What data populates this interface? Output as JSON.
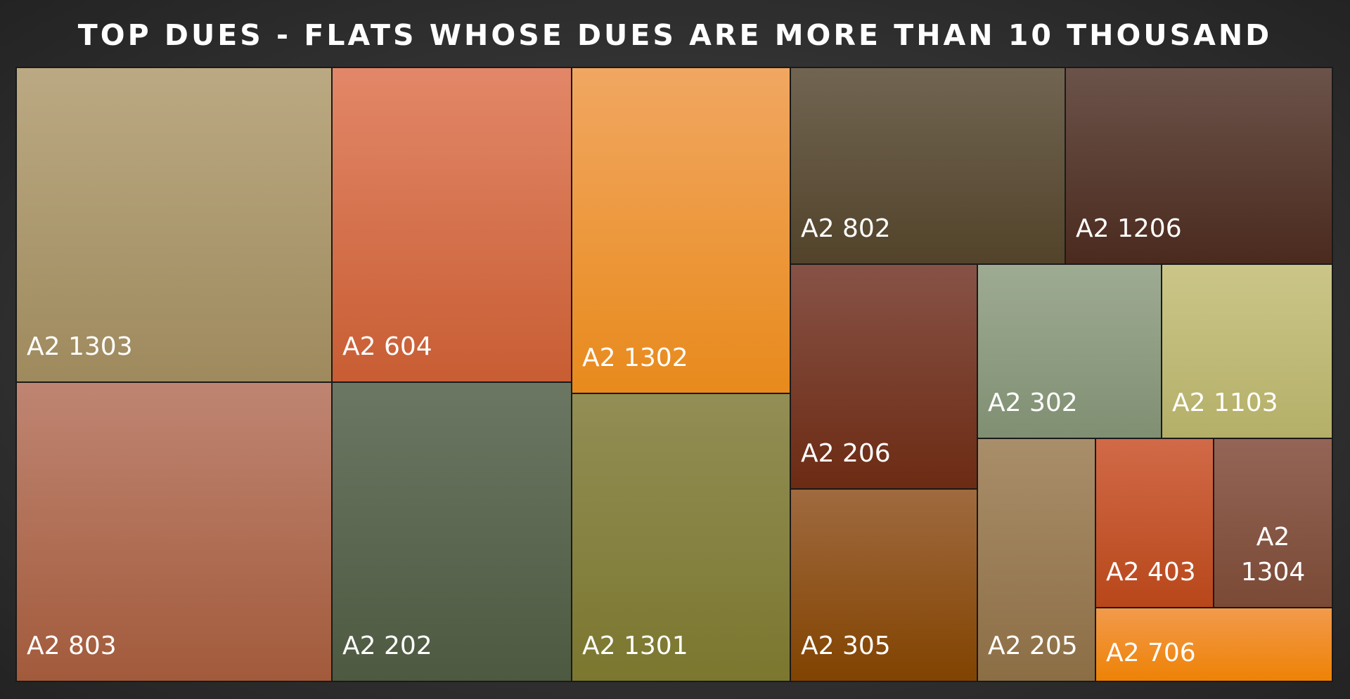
{
  "title": "TOP DUES - FLATS WHOSE DUES ARE MORE THAN 10 THOUSAND",
  "chart_data": {
    "type": "treemap",
    "title": "TOP DUES - FLATS WHOSE DUES ARE MORE THAN 10 THOUSAND",
    "items": [
      {
        "label": "A2 1303",
        "value": 20.2,
        "colors": [
          "#bba983",
          "#9e8a5d"
        ]
      },
      {
        "label": "A2 803",
        "value": 19.2,
        "colors": [
          "#bf8572",
          "#a25a3b"
        ]
      },
      {
        "label": "A2 604",
        "value": 15.3,
        "colors": [
          "#e28768",
          "#c85d33"
        ]
      },
      {
        "label": "A2 202",
        "value": 14.6,
        "colors": [
          "#6b7763",
          "#4d5940"
        ]
      },
      {
        "label": "A2 1302",
        "value": 14.7,
        "colors": [
          "#f1a761",
          "#e88a1c"
        ]
      },
      {
        "label": "A2 1301",
        "value": 12.8,
        "colors": [
          "#928e55",
          "#7b772f"
        ]
      },
      {
        "label": "A2 802",
        "value": 10.7,
        "colors": [
          "#716552",
          "#52432a"
        ]
      },
      {
        "label": "A2 1206",
        "value": 10.7,
        "colors": [
          "#6b534a",
          "#4b2a1e"
        ]
      },
      {
        "label": "A2 206",
        "value": 8.3,
        "colors": [
          "#875246",
          "#6c2b13"
        ]
      },
      {
        "label": "A2 305",
        "value": 6.0,
        "colors": [
          "#a06a3f",
          "#814300"
        ]
      },
      {
        "label": "A2 302",
        "value": 6.4,
        "colors": [
          "#9eab93",
          "#808f72"
        ]
      },
      {
        "label": "A2 1103",
        "value": 6.4,
        "colors": [
          "#cbc688",
          "#b4af68"
        ]
      },
      {
        "label": "A2 205",
        "value": 5.1,
        "colors": [
          "#a98e6a",
          "#8c6e45"
        ]
      },
      {
        "label": "A2 403",
        "value": 3.9,
        "colors": [
          "#d16a48",
          "#b8471a"
        ]
      },
      {
        "label": "A2 1304",
        "value": 3.9,
        "colors": [
          "#946456",
          "#7a4a36"
        ]
      },
      {
        "label": "A2 706",
        "value": 3.5,
        "colors": [
          "#f29a4c",
          "#ee8205"
        ]
      }
    ]
  }
}
